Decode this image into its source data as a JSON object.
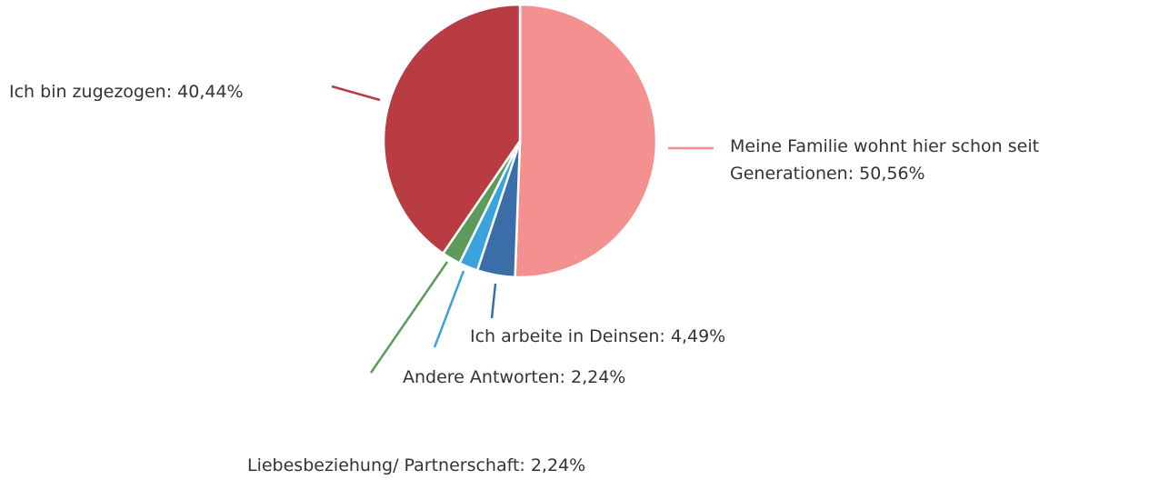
{
  "chart_data": {
    "type": "pie",
    "categories": [
      "Meine Familie wohnt hier schon seit Generationen: 50,56%",
      "Ich arbeite in Deinsen: 4,49%",
      "Andere Antworten: 2,24%",
      "Liebesbeziehung/ Partnerschaft: 2,24%",
      "Ich bin zugezogen: 40,44%"
    ],
    "values": [
      50.56,
      4.49,
      2.24,
      2.24,
      40.44
    ],
    "colors": [
      "#f49090",
      "#3a6ea8",
      "#3aa3dd",
      "#5c9b5c",
      "#b93c42"
    ]
  }
}
